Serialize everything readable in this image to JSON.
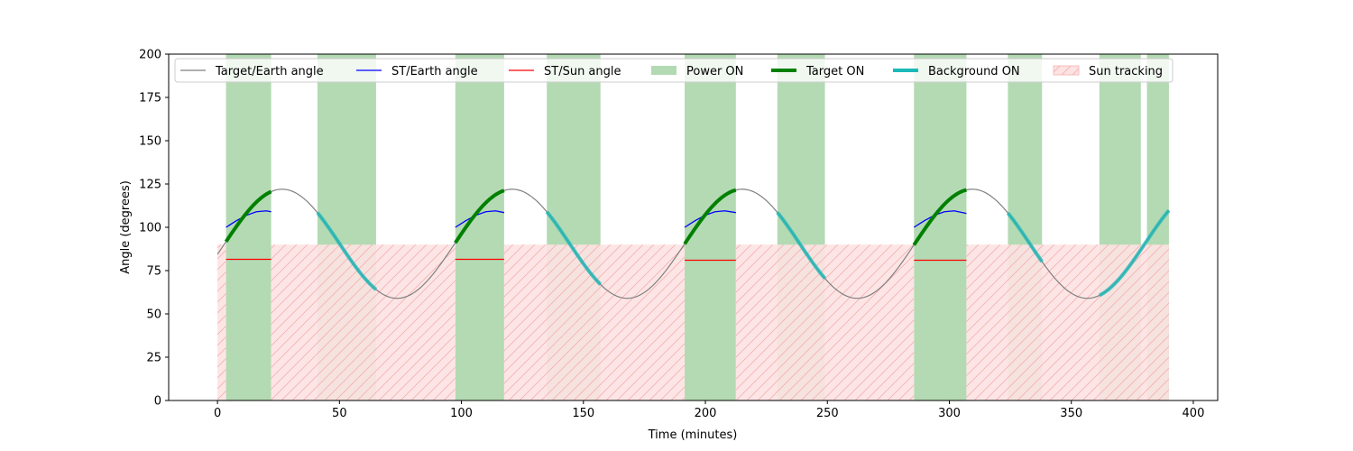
{
  "chart_data": {
    "type": "line",
    "title": "",
    "xlabel": "Time (minutes)",
    "ylabel": "Angle (degrees)",
    "xlim": [
      -20,
      410
    ],
    "ylim": [
      0,
      200
    ],
    "xticks": [
      0,
      50,
      100,
      150,
      200,
      250,
      300,
      350,
      400
    ],
    "yticks": [
      0,
      25,
      50,
      75,
      100,
      125,
      150,
      175,
      200
    ],
    "grid": false,
    "legend_position": "top",
    "colors": {
      "target_earth": "#808080",
      "st_earth": "#0000ff",
      "st_sun": "#ff0000",
      "power_on": "#b3dab3",
      "target_on": "#008000",
      "background_on": "#1cb8b8",
      "sun_tracking_fill": "#fde2e2",
      "sun_tracking_hatch": "#f3b1b1"
    },
    "legend": [
      {
        "key": "target_earth",
        "label": "Target/Earth angle"
      },
      {
        "key": "st_earth",
        "label": "ST/Earth angle"
      },
      {
        "key": "st_sun",
        "label": "ST/Sun angle"
      },
      {
        "key": "power_on",
        "label": "Power ON"
      },
      {
        "key": "target_on",
        "label": "Target ON"
      },
      {
        "key": "background_on",
        "label": "Background ON"
      },
      {
        "key": "sun_tracking",
        "label": "Sun tracking"
      }
    ],
    "target_earth_model": {
      "mean": 90.5,
      "amplitude": 31.5,
      "period": 94.3,
      "peak_time": 26.5,
      "t_start": 0,
      "t_end": 390
    },
    "power_on_intervals": [
      [
        3.5,
        22
      ],
      [
        41,
        65
      ],
      [
        97.5,
        117.5
      ],
      [
        135,
        157
      ],
      [
        191.5,
        212.5
      ],
      [
        229.5,
        249
      ],
      [
        285.5,
        307
      ],
      [
        324,
        338
      ],
      [
        361.5,
        378.5
      ],
      [
        381,
        390
      ]
    ],
    "sun_tracking_level": 90,
    "sun_tracking_intervals": [
      [
        0,
        3.5
      ],
      [
        22,
        97.5
      ],
      [
        117.5,
        191.5
      ],
      [
        212.5,
        285.5
      ],
      [
        307,
        390
      ]
    ],
    "target_on_intervals": [
      [
        3.5,
        22
      ],
      [
        97.5,
        117.5
      ],
      [
        191.5,
        212.5
      ],
      [
        285.5,
        307
      ]
    ],
    "background_on_intervals": [
      [
        41,
        65
      ],
      [
        135,
        157
      ],
      [
        229.5,
        249
      ],
      [
        324,
        338
      ],
      [
        361.5,
        390
      ]
    ],
    "st_earth_segments": [
      {
        "x": [
          3.5,
          8,
          12,
          16,
          20,
          22
        ],
        "y": [
          100,
          104,
          107,
          109,
          109.5,
          109
        ]
      },
      {
        "x": [
          97.5,
          102,
          106,
          110,
          114,
          117.5
        ],
        "y": [
          100,
          104,
          107,
          109,
          109.5,
          108.5
        ]
      },
      {
        "x": [
          191.5,
          196,
          200,
          204,
          208,
          212.5
        ],
        "y": [
          100,
          104,
          107,
          109,
          109.5,
          108.5
        ]
      },
      {
        "x": [
          285.5,
          290,
          294,
          298,
          302,
          307
        ],
        "y": [
          100,
          104,
          107,
          109,
          109.5,
          108
        ]
      }
    ],
    "st_sun_segments": [
      {
        "x": [
          3.5,
          22
        ],
        "y": [
          81.5,
          81.5
        ]
      },
      {
        "x": [
          97.5,
          117.5
        ],
        "y": [
          81.5,
          81.5
        ]
      },
      {
        "x": [
          191.5,
          212.5
        ],
        "y": [
          81,
          81
        ]
      },
      {
        "x": [
          285.5,
          307
        ],
        "y": [
          81,
          81
        ]
      }
    ]
  }
}
